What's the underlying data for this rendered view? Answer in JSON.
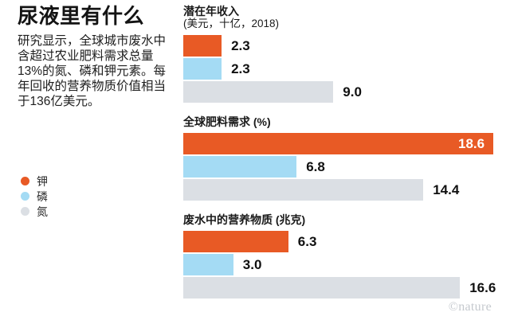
{
  "header": {
    "title": "尿液里有什么",
    "description": "研究显示，全球城市废水中含超过农业肥料需求总量13%的氮、磷和钾元素。每年回收的营养物质价值相当于136亿美元。"
  },
  "footer": {
    "watermark": "©nature"
  },
  "chart_data": {
    "type": "bar",
    "orientation": "horizontal",
    "grid": false,
    "legend_position": "left",
    "xlim": [
      0,
      19.6
    ],
    "categories": [
      "钾",
      "磷",
      "氮"
    ],
    "legend": [
      {
        "label": "钾",
        "color": "#E85A25"
      },
      {
        "label": "磷",
        "color": "#A4DBF4"
      },
      {
        "label": "氮",
        "color": "#DBDFE4"
      }
    ],
    "groups": [
      {
        "title": "潜在年收入",
        "subtitle": "(美元，十亿，2018)",
        "values": [
          2.3,
          2.3,
          9.0
        ],
        "labels": [
          "2.3",
          "2.3",
          "9.0"
        ]
      },
      {
        "title": "全球肥料需求 (%)",
        "subtitle": "",
        "values": [
          18.6,
          6.8,
          14.4
        ],
        "labels": [
          "18.6",
          "6.8",
          "14.4"
        ]
      },
      {
        "title": "废水中的营养物质 (兆克)",
        "subtitle": "",
        "values": [
          6.3,
          3.0,
          16.6
        ],
        "labels": [
          "6.3",
          "3.0",
          "16.6"
        ]
      }
    ]
  }
}
